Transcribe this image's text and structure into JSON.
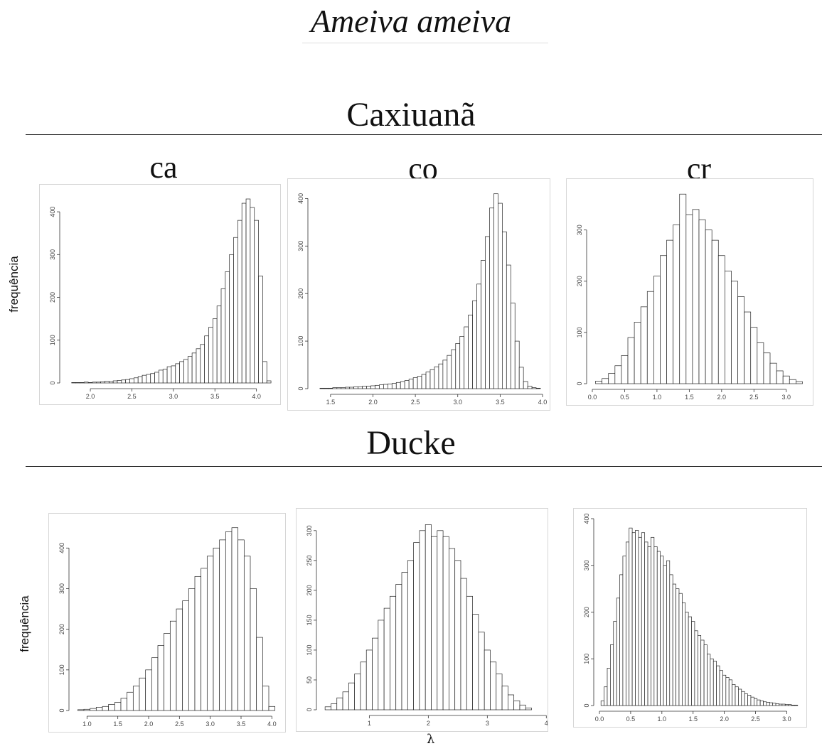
{
  "title": "Ameiva ameiva",
  "sites": {
    "top": "Caxiuanã",
    "bottom": "Ducke"
  },
  "columns": [
    "ca",
    "co",
    "cr"
  ],
  "ylabel": "frequência",
  "xlabel": "λ",
  "chart_data": [
    {
      "type": "bar",
      "panel": "Caxiuanã ca",
      "x": [
        1.75,
        1.8,
        1.85,
        1.9,
        1.95,
        2.0,
        2.05,
        2.1,
        2.15,
        2.2,
        2.25,
        2.3,
        2.35,
        2.4,
        2.45,
        2.5,
        2.55,
        2.6,
        2.65,
        2.7,
        2.75,
        2.8,
        2.85,
        2.9,
        2.95,
        3.0,
        3.05,
        3.1,
        3.15,
        3.2,
        3.25,
        3.3,
        3.35,
        3.4,
        3.45,
        3.5,
        3.55,
        3.6,
        3.65,
        3.7,
        3.75,
        3.8,
        3.85,
        3.9,
        3.95,
        4.0,
        4.05,
        4.1,
        4.15
      ],
      "values": [
        0,
        1,
        1,
        1,
        2,
        1,
        2,
        2,
        3,
        4,
        3,
        5,
        6,
        7,
        8,
        10,
        12,
        15,
        18,
        20,
        22,
        25,
        30,
        32,
        38,
        40,
        45,
        50,
        55,
        62,
        70,
        80,
        90,
        110,
        130,
        150,
        180,
        220,
        260,
        300,
        340,
        380,
        420,
        430,
        410,
        380,
        250,
        50,
        5
      ],
      "xticks": [
        2.0,
        2.5,
        3.0,
        3.5,
        4.0
      ],
      "yticks": [
        0,
        100,
        200,
        300,
        400
      ],
      "xlim": [
        1.7,
        4.2
      ],
      "ylim": [
        0,
        440
      ]
    },
    {
      "type": "bar",
      "panel": "Caxiuanã co",
      "x": [
        1.3,
        1.35,
        1.4,
        1.45,
        1.5,
        1.55,
        1.6,
        1.65,
        1.7,
        1.75,
        1.8,
        1.85,
        1.9,
        1.95,
        2.0,
        2.05,
        2.1,
        2.15,
        2.2,
        2.25,
        2.3,
        2.35,
        2.4,
        2.45,
        2.5,
        2.55,
        2.6,
        2.65,
        2.7,
        2.75,
        2.8,
        2.85,
        2.9,
        2.95,
        3.0,
        3.05,
        3.1,
        3.15,
        3.2,
        3.25,
        3.3,
        3.35,
        3.4,
        3.45,
        3.5,
        3.55,
        3.6,
        3.65,
        3.7,
        3.75,
        3.8,
        3.85,
        3.9,
        3.95
      ],
      "values": [
        0,
        0,
        1,
        1,
        1,
        2,
        2,
        2,
        3,
        3,
        4,
        4,
        5,
        5,
        6,
        7,
        8,
        9,
        10,
        11,
        13,
        15,
        17,
        20,
        23,
        26,
        30,
        35,
        40,
        46,
        52,
        60,
        70,
        82,
        95,
        110,
        130,
        155,
        185,
        220,
        270,
        320,
        380,
        410,
        390,
        330,
        260,
        180,
        100,
        45,
        15,
        5,
        2,
        1
      ],
      "xticks": [
        1.5,
        2.0,
        2.5,
        3.0,
        3.5,
        4.0
      ],
      "yticks": [
        0,
        100,
        200,
        300,
        400
      ],
      "xlim": [
        1.3,
        4.0
      ],
      "ylim": [
        0,
        420
      ]
    },
    {
      "type": "bar",
      "panel": "Caxiuanã cr",
      "x": [
        0.1,
        0.2,
        0.3,
        0.4,
        0.5,
        0.6,
        0.7,
        0.8,
        0.9,
        1.0,
        1.1,
        1.2,
        1.3,
        1.4,
        1.5,
        1.6,
        1.7,
        1.8,
        1.9,
        2.0,
        2.1,
        2.2,
        2.3,
        2.4,
        2.5,
        2.6,
        2.7,
        2.8,
        2.9,
        3.0,
        3.1,
        3.2
      ],
      "values": [
        5,
        10,
        20,
        35,
        55,
        90,
        120,
        150,
        180,
        210,
        250,
        280,
        310,
        370,
        330,
        340,
        320,
        300,
        280,
        250,
        220,
        200,
        170,
        140,
        110,
        80,
        60,
        40,
        25,
        15,
        8,
        4
      ],
      "xticks": [
        0.0,
        0.5,
        1.0,
        1.5,
        2.0,
        2.5,
        3.0
      ],
      "yticks": [
        0,
        100,
        200,
        300
      ],
      "xlim": [
        0.0,
        3.3
      ],
      "ylim": [
        0,
        380
      ]
    },
    {
      "type": "bar",
      "panel": "Ducke ca",
      "x": [
        0.9,
        1.0,
        1.1,
        1.2,
        1.3,
        1.4,
        1.5,
        1.6,
        1.7,
        1.8,
        1.9,
        2.0,
        2.1,
        2.2,
        2.3,
        2.4,
        2.5,
        2.6,
        2.7,
        2.8,
        2.9,
        3.0,
        3.1,
        3.2,
        3.3,
        3.4,
        3.5,
        3.6,
        3.7,
        3.8,
        3.9,
        4.0
      ],
      "values": [
        2,
        3,
        5,
        8,
        10,
        15,
        20,
        30,
        45,
        60,
        80,
        100,
        130,
        160,
        190,
        220,
        250,
        270,
        300,
        330,
        350,
        380,
        400,
        420,
        440,
        450,
        420,
        380,
        300,
        180,
        60,
        10
      ],
      "xticks": [
        1.0,
        1.5,
        2.0,
        2.5,
        3.0,
        3.5,
        4.0
      ],
      "yticks": [
        0,
        100,
        200,
        300,
        400
      ],
      "xlim": [
        0.8,
        4.1
      ],
      "ylim": [
        0,
        460
      ]
    },
    {
      "type": "bar",
      "panel": "Ducke co",
      "x": [
        0.3,
        0.4,
        0.5,
        0.6,
        0.7,
        0.8,
        0.9,
        1.0,
        1.1,
        1.2,
        1.3,
        1.4,
        1.5,
        1.6,
        1.7,
        1.8,
        1.9,
        2.0,
        2.1,
        2.2,
        2.3,
        2.4,
        2.5,
        2.6,
        2.7,
        2.8,
        2.9,
        3.0,
        3.1,
        3.2,
        3.3,
        3.4,
        3.5,
        3.6,
        3.7
      ],
      "values": [
        5,
        10,
        20,
        30,
        45,
        60,
        80,
        100,
        120,
        150,
        170,
        190,
        210,
        230,
        250,
        280,
        300,
        310,
        290,
        300,
        290,
        270,
        250,
        220,
        190,
        160,
        130,
        100,
        80,
        60,
        40,
        25,
        15,
        8,
        3
      ],
      "xticks": [
        1,
        2,
        3,
        4
      ],
      "yticks": [
        0,
        50,
        100,
        150,
        200,
        250,
        300
      ],
      "xlim": [
        0.2,
        3.9
      ],
      "ylim": [
        0,
        320
      ]
    },
    {
      "type": "bar",
      "panel": "Ducke cr",
      "x": [
        0.05,
        0.1,
        0.15,
        0.2,
        0.25,
        0.3,
        0.35,
        0.4,
        0.45,
        0.5,
        0.55,
        0.6,
        0.65,
        0.7,
        0.75,
        0.8,
        0.85,
        0.9,
        0.95,
        1.0,
        1.05,
        1.1,
        1.15,
        1.2,
        1.25,
        1.3,
        1.35,
        1.4,
        1.45,
        1.5,
        1.55,
        1.6,
        1.65,
        1.7,
        1.75,
        1.8,
        1.85,
        1.9,
        1.95,
        2.0,
        2.05,
        2.1,
        2.15,
        2.2,
        2.25,
        2.3,
        2.35,
        2.4,
        2.45,
        2.5,
        2.55,
        2.6,
        2.65,
        2.7,
        2.75,
        2.8,
        2.85,
        2.9,
        2.95,
        3.0,
        3.05,
        3.1,
        3.15
      ],
      "values": [
        10,
        40,
        80,
        130,
        180,
        230,
        280,
        320,
        350,
        380,
        370,
        375,
        360,
        370,
        350,
        340,
        360,
        340,
        330,
        320,
        300,
        310,
        280,
        260,
        250,
        240,
        220,
        200,
        190,
        180,
        160,
        150,
        140,
        130,
        110,
        100,
        95,
        85,
        75,
        65,
        60,
        55,
        45,
        40,
        35,
        30,
        25,
        22,
        18,
        15,
        12,
        10,
        8,
        7,
        6,
        5,
        4,
        3,
        3,
        2,
        2,
        1,
        1
      ],
      "xticks": [
        0.0,
        0.5,
        1.0,
        1.5,
        2.0,
        2.5,
        3.0
      ],
      "yticks": [
        0,
        100,
        200,
        300,
        400
      ],
      "xlim": [
        0.0,
        3.2
      ],
      "ylim": [
        0,
        400
      ]
    }
  ]
}
